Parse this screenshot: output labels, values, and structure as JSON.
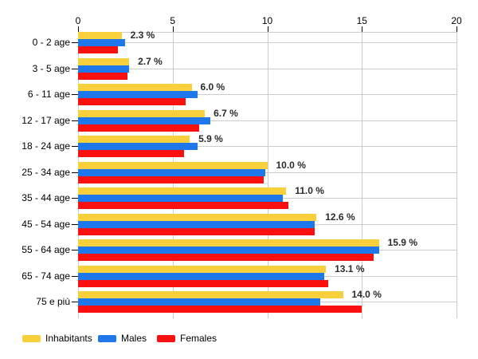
{
  "chart_data": {
    "type": "bar",
    "orientation": "horizontal",
    "title": "",
    "categories": [
      "0 - 2 age",
      "3 - 5 age",
      "6 - 11 age",
      "12 - 17 age",
      "18 - 24 age",
      "25 - 34 age",
      "35 - 44 age",
      "45 - 54 age",
      "55 - 64 age",
      "65 - 74 age",
      "75 e più"
    ],
    "series": [
      {
        "name": "Inhabitants",
        "color": "#F8D03C",
        "values": [
          2.3,
          2.7,
          6.0,
          6.7,
          5.9,
          10.0,
          11.0,
          12.6,
          15.9,
          13.1,
          14.0
        ],
        "labels": [
          "2.3 %",
          "2.7 %",
          "6.0 %",
          "6.7 %",
          "5.9 %",
          "10.0 %",
          "11.0 %",
          "12.6 %",
          "15.9 %",
          "13.1 %",
          "14.0 %"
        ]
      },
      {
        "name": "Males",
        "color": "#1E78EB",
        "values": [
          2.5,
          2.7,
          6.3,
          7.0,
          6.3,
          9.9,
          10.8,
          12.5,
          15.9,
          13.0,
          12.8
        ]
      },
      {
        "name": "Females",
        "color": "#FB1010",
        "values": [
          2.1,
          2.6,
          5.7,
          6.4,
          5.6,
          9.8,
          11.1,
          12.5,
          15.6,
          13.2,
          15.0
        ]
      }
    ],
    "xlim": [
      0,
      20
    ],
    "x_ticks": [
      "0",
      "5",
      "10",
      "15",
      "20"
    ],
    "grid": true,
    "legend_position": "bottom-left",
    "colors": {
      "grid": "#cccccc",
      "axis_text": "#000000",
      "value_label_text": "#2b2b2b",
      "background": "#ffffff"
    }
  }
}
